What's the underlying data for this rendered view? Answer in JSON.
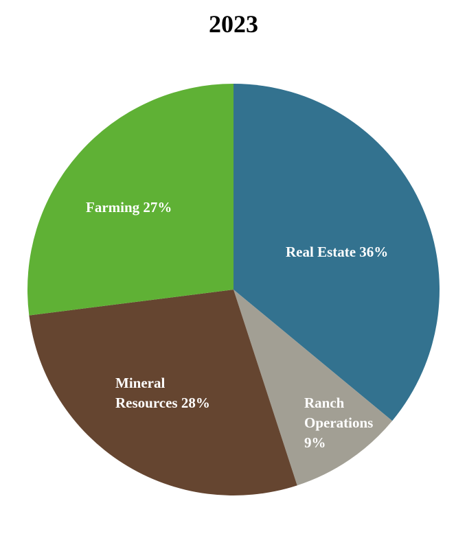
{
  "chart_data": {
    "type": "pie",
    "title": "2023",
    "slices": [
      {
        "label": "Real Estate",
        "value": 36,
        "value_label": "36%",
        "color": "#33728f",
        "label_lines": [
          "Real Estate 36%"
        ]
      },
      {
        "label": "Ranch Operations",
        "value": 9,
        "value_label": "9%",
        "color": "#a29f94",
        "label_lines": [
          "Ranch",
          "Operations",
          "9%"
        ]
      },
      {
        "label": "Mineral Resources",
        "value": 28,
        "value_label": "28%",
        "color": "#654530",
        "label_lines": [
          "Mineral",
          "Resources 28%"
        ]
      },
      {
        "label": "Farming",
        "value": 27,
        "value_label": "27%",
        "color": "#5fb135",
        "label_lines": [
          "Farming 27%"
        ]
      }
    ],
    "start_angle": "12 o'clock",
    "direction": "clockwise",
    "legend": "none"
  }
}
